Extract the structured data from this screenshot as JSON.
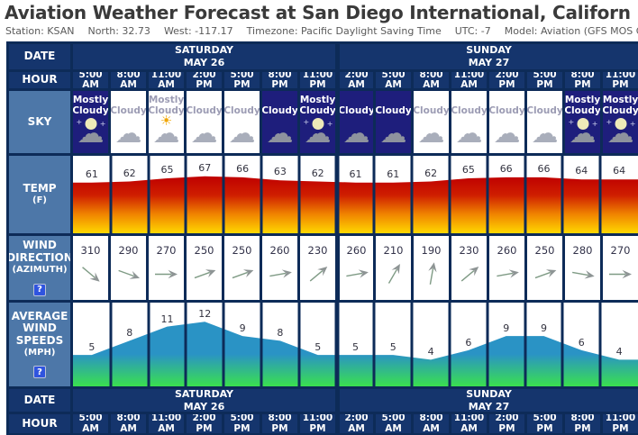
{
  "header": {
    "title": "Aviation Weather Forecast at San Diego International, Californ",
    "station_info": [
      {
        "label": "Station:",
        "value": "KSAN"
      },
      {
        "label": "North:",
        "value": "32.73"
      },
      {
        "label": "West:",
        "value": "-117.17"
      },
      {
        "label": "Timezone:",
        "value": "Pacific Daylight Saving Time"
      },
      {
        "label": "UTC:",
        "value": "-7"
      },
      {
        "label": "Model:",
        "value": "Aviation (GFS MOS Guidance)"
      }
    ]
  },
  "table": {
    "row_labels": {
      "date": "DATE",
      "hour": "HOUR",
      "sky": "SKY",
      "temp": [
        "TEMP",
        "(F)"
      ],
      "wind_direction": [
        "WIND",
        "DIRECTION",
        "(AZIMUTH)"
      ],
      "wind_speed": [
        "AVERAGE",
        "WIND",
        "SPEEDS",
        "(MPH)"
      ]
    },
    "help_icon": "?",
    "days": [
      {
        "name": "SATURDAY",
        "date": "MAY 26",
        "cols": 7
      },
      {
        "name": "SUNDAY",
        "date": "MAY 27",
        "cols": 8
      }
    ],
    "hours": [
      "5:00 AM",
      "8:00 AM",
      "11:00 AM",
      "2:00 PM",
      "5:00 PM",
      "8:00 PM",
      "11:00 PM",
      "2:00 AM",
      "5:00 AM",
      "8:00 AM",
      "11:00 AM",
      "2:00 PM",
      "5:00 PM",
      "8:00 PM",
      "11:00 PM"
    ],
    "sky": [
      {
        "condition": "Mostly Cloudy",
        "night": true,
        "icon": "cloud-moon-icon"
      },
      {
        "condition": "Cloudy",
        "night": false,
        "icon": "cloud-icon"
      },
      {
        "condition": "Mostly Cloudy",
        "night": false,
        "icon": "cloud-sun-icon"
      },
      {
        "condition": "Cloudy",
        "night": false,
        "icon": "cloud-icon"
      },
      {
        "condition": "Cloudy",
        "night": false,
        "icon": "cloud-icon"
      },
      {
        "condition": "Cloudy",
        "night": true,
        "icon": "cloud-icon"
      },
      {
        "condition": "Mostly Cloudy",
        "night": true,
        "icon": "cloud-moon-icon"
      },
      {
        "condition": "Cloudy",
        "night": true,
        "icon": "cloud-icon"
      },
      {
        "condition": "Cloudy",
        "night": true,
        "icon": "cloud-icon"
      },
      {
        "condition": "Cloudy",
        "night": false,
        "icon": "cloud-icon"
      },
      {
        "condition": "Cloudy",
        "night": false,
        "icon": "cloud-icon"
      },
      {
        "condition": "Cloudy",
        "night": false,
        "icon": "cloud-icon"
      },
      {
        "condition": "Cloudy",
        "night": false,
        "icon": "cloud-icon"
      },
      {
        "condition": "Mostly Cloudy",
        "night": true,
        "icon": "cloud-moon-icon"
      },
      {
        "condition": "Mostly Cloudy",
        "night": true,
        "icon": "cloud-moon-icon"
      }
    ],
    "wind_direction_values": [
      310,
      290,
      270,
      250,
      250,
      260,
      230,
      260,
      210,
      190,
      230,
      260,
      250,
      280,
      270
    ]
  },
  "chart_data": [
    {
      "type": "area",
      "name": "temperature",
      "title": "TEMP (F)",
      "categories": [
        "5:00 AM",
        "8:00 AM",
        "11:00 AM",
        "2:00 PM",
        "5:00 PM",
        "8:00 PM",
        "11:00 PM",
        "2:00 AM",
        "5:00 AM",
        "8:00 AM",
        "11:00 AM",
        "2:00 PM",
        "5:00 PM",
        "8:00 PM",
        "11:00 PM"
      ],
      "values": [
        61,
        62,
        65,
        67,
        66,
        63,
        62,
        61,
        61,
        62,
        65,
        66,
        66,
        64,
        64
      ],
      "unit": "F",
      "gradient": [
        "#bf0000",
        "#cf1e00",
        "#f08400",
        "#ffd800"
      ],
      "grid": true,
      "legend": "none"
    },
    {
      "type": "area",
      "name": "average-wind-speed",
      "title": "AVERAGE WIND SPEEDS (MPH)",
      "categories": [
        "5:00 AM",
        "8:00 AM",
        "11:00 AM",
        "2:00 PM",
        "5:00 PM",
        "8:00 PM",
        "11:00 PM",
        "2:00 AM",
        "5:00 AM",
        "8:00 AM",
        "11:00 AM",
        "2:00 PM",
        "5:00 PM",
        "8:00 PM",
        "11:00 PM"
      ],
      "values": [
        5,
        8,
        11,
        12,
        9,
        8,
        5,
        5,
        5,
        4,
        6,
        9,
        9,
        6,
        4
      ],
      "unit": "MPH",
      "gradient": [
        "#2a93c5",
        "#2a93c5",
        "#3ae04e"
      ],
      "grid": true,
      "legend": "none"
    },
    {
      "type": "table",
      "name": "wind-direction-azimuth",
      "title": "WIND DIRECTION (AZIMUTH)",
      "categories": [
        "5:00 AM",
        "8:00 AM",
        "11:00 AM",
        "2:00 PM",
        "5:00 PM",
        "8:00 PM",
        "11:00 PM",
        "2:00 AM",
        "5:00 AM",
        "8:00 AM",
        "11:00 AM",
        "2:00 PM",
        "5:00 PM",
        "8:00 PM",
        "11:00 PM"
      ],
      "values": [
        310,
        290,
        270,
        250,
        250,
        260,
        230,
        260,
        210,
        190,
        230,
        260,
        250,
        280,
        270
      ]
    }
  ],
  "colors": {
    "header_navy": "#15356d",
    "border_navy": "#0d2b58",
    "label_steel": "#4d77a8",
    "night_sky": "#1e1e7c",
    "arrow": "#8d9494"
  }
}
